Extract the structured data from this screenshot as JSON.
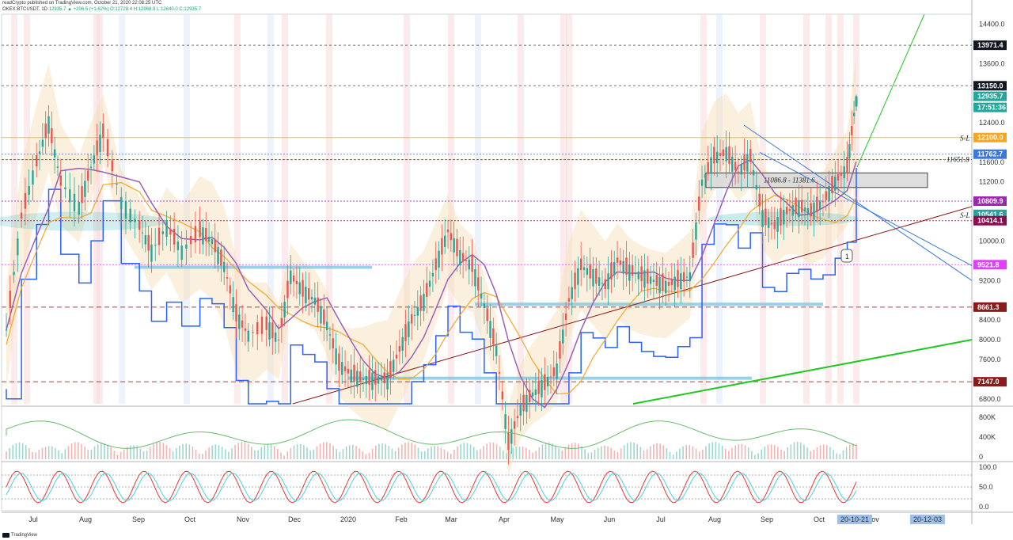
{
  "header": {
    "line1": "readCrypto published on TradingView.com, October 21, 2020 22:08:25 UTC",
    "symbol": "OKEX:BTCUSDT, 1D",
    "ohlc": "12935.7 ▲ +206.5 (+1.62%) O:12728.4 H:12968.9 L:12640.0 C:12935.7"
  },
  "footer": {
    "brand": "TradingView"
  },
  "colors": {
    "green_line": "#1ec81e",
    "dark_red_line": "#8b1a1a",
    "blue_line": "#3c78d8",
    "orange_line": "#f5a623",
    "teal_zone": "#6cc8c8",
    "up_candle": "#26a69a",
    "down_candle": "#ef5350"
  },
  "annotations": {
    "zone_label": "11086.8 - 11381.6",
    "sl_upper": "S-L",
    "sl_lower": "S-L",
    "level_label": "11651.8",
    "marker": "1"
  },
  "chart_data": [
    {
      "type": "line",
      "title": "",
      "symbol": "OKEX:BTCUSDT",
      "interval": "1D",
      "x_ticks": [
        "Jul",
        "Aug",
        "Sep",
        "Oct",
        "Nov",
        "Dec",
        "2020",
        "Feb",
        "Mar",
        "Apr",
        "May",
        "Jun",
        "Jul",
        "Aug",
        "Sep",
        "Oct",
        "ov"
      ],
      "x_highlight_labels": [
        "20-10-21",
        "20-12-03"
      ],
      "y_ticks": [
        14400.0,
        13600.0,
        12400.0,
        11600.0,
        11200.0,
        10000.0,
        9200.0,
        8400.0,
        8000.0,
        7600.0,
        6800.0
      ],
      "ylim": [
        6700,
        14600
      ],
      "price_series_approx": [
        [
          0,
          8200
        ],
        [
          5,
          10500
        ],
        [
          10,
          11600
        ],
        [
          14,
          12400
        ],
        [
          18,
          11200
        ],
        [
          24,
          10700
        ],
        [
          28,
          11500
        ],
        [
          32,
          12200
        ],
        [
          38,
          10800
        ],
        [
          44,
          10300
        ],
        [
          48,
          9800
        ],
        [
          53,
          10300
        ],
        [
          58,
          9800
        ],
        [
          64,
          10200
        ],
        [
          68,
          10000
        ],
        [
          72,
          9500
        ],
        [
          76,
          8500
        ],
        [
          80,
          8100
        ],
        [
          86,
          8300
        ],
        [
          90,
          8000
        ],
        [
          94,
          9300
        ],
        [
          98,
          9000
        ],
        [
          102,
          8800
        ],
        [
          106,
          8300
        ],
        [
          110,
          7500
        ],
        [
          114,
          7300
        ],
        [
          118,
          7200
        ],
        [
          122,
          7200
        ],
        [
          126,
          7200
        ],
        [
          130,
          7800
        ],
        [
          134,
          8400
        ],
        [
          138,
          8800
        ],
        [
          142,
          9500
        ],
        [
          146,
          10200
        ],
        [
          150,
          9700
        ],
        [
          154,
          9500
        ],
        [
          158,
          8700
        ],
        [
          162,
          7800
        ],
        [
          166,
          5900
        ],
        [
          170,
          6600
        ],
        [
          174,
          6900
        ],
        [
          178,
          7100
        ],
        [
          182,
          7400
        ],
        [
          186,
          8800
        ],
        [
          190,
          9500
        ],
        [
          194,
          9300
        ],
        [
          198,
          9100
        ],
        [
          202,
          9600
        ],
        [
          206,
          9400
        ],
        [
          210,
          9300
        ],
        [
          214,
          9200
        ],
        [
          218,
          9100
        ],
        [
          222,
          9200
        ],
        [
          226,
          9300
        ],
        [
          230,
          11200
        ],
        [
          234,
          11700
        ],
        [
          238,
          11800
        ],
        [
          242,
          11400
        ],
        [
          246,
          11700
        ],
        [
          250,
          10500
        ],
        [
          254,
          10300
        ],
        [
          258,
          10600
        ],
        [
          262,
          10700
        ],
        [
          266,
          10600
        ],
        [
          270,
          10800
        ],
        [
          274,
          11200
        ],
        [
          278,
          11500
        ],
        [
          281,
          12935.7
        ]
      ],
      "series": [
        {
          "name": "Ichimoku cloud",
          "kind": "band"
        },
        {
          "name": "Moving averages",
          "kind": "line"
        }
      ],
      "price_badges": [
        {
          "value": "13971.4",
          "bg": "#131722",
          "fg": "#ffffff"
        },
        {
          "value": "13150.0",
          "bg": "#131722",
          "fg": "#ffffff"
        },
        {
          "value": "12935.7",
          "bg": "#26a69a",
          "fg": "#ffffff"
        },
        {
          "value": "17:51:36",
          "bg": "#26a69a",
          "fg": "#ffffff"
        },
        {
          "value": "12100.0",
          "bg": "#f5a623",
          "fg": "#ffffff"
        },
        {
          "value": "11762.7",
          "bg": "#3c78d8",
          "fg": "#ffffff"
        },
        {
          "value": "10809.9",
          "bg": "#9c27b0",
          "fg": "#ffffff"
        },
        {
          "value": "10541.6",
          "bg": "#26a69a",
          "fg": "#ffffff"
        },
        {
          "value": "10414.1",
          "bg": "#880e4f",
          "fg": "#ffffff"
        },
        {
          "value": "9521.8",
          "bg": "#e040fb",
          "fg": "#ffffff"
        },
        {
          "value": "8661.3",
          "bg": "#8b1a1a",
          "fg": "#ffffff"
        },
        {
          "value": "7147.0",
          "bg": "#8b1a1a",
          "fg": "#ffffff"
        }
      ],
      "horizontal_levels": [
        13971.4,
        13150.0,
        12100.0,
        11762.7,
        11651.8,
        10809.9,
        10414.1,
        9521.8,
        8661.3,
        7147.0
      ],
      "zone": {
        "from": 11086.8,
        "to": 11381.6
      }
    },
    {
      "type": "area",
      "title": "",
      "y_ticks": [
        "800K",
        "400K",
        "0"
      ]
    },
    {
      "type": "line",
      "title": "",
      "y_ticks": [
        "100.0",
        "50.0",
        "0.0"
      ],
      "ylim": [
        0,
        100
      ],
      "series": [
        {
          "name": "",
          "color": "#e53935"
        },
        {
          "name": "",
          "color": "#4dd0e1"
        }
      ]
    }
  ]
}
